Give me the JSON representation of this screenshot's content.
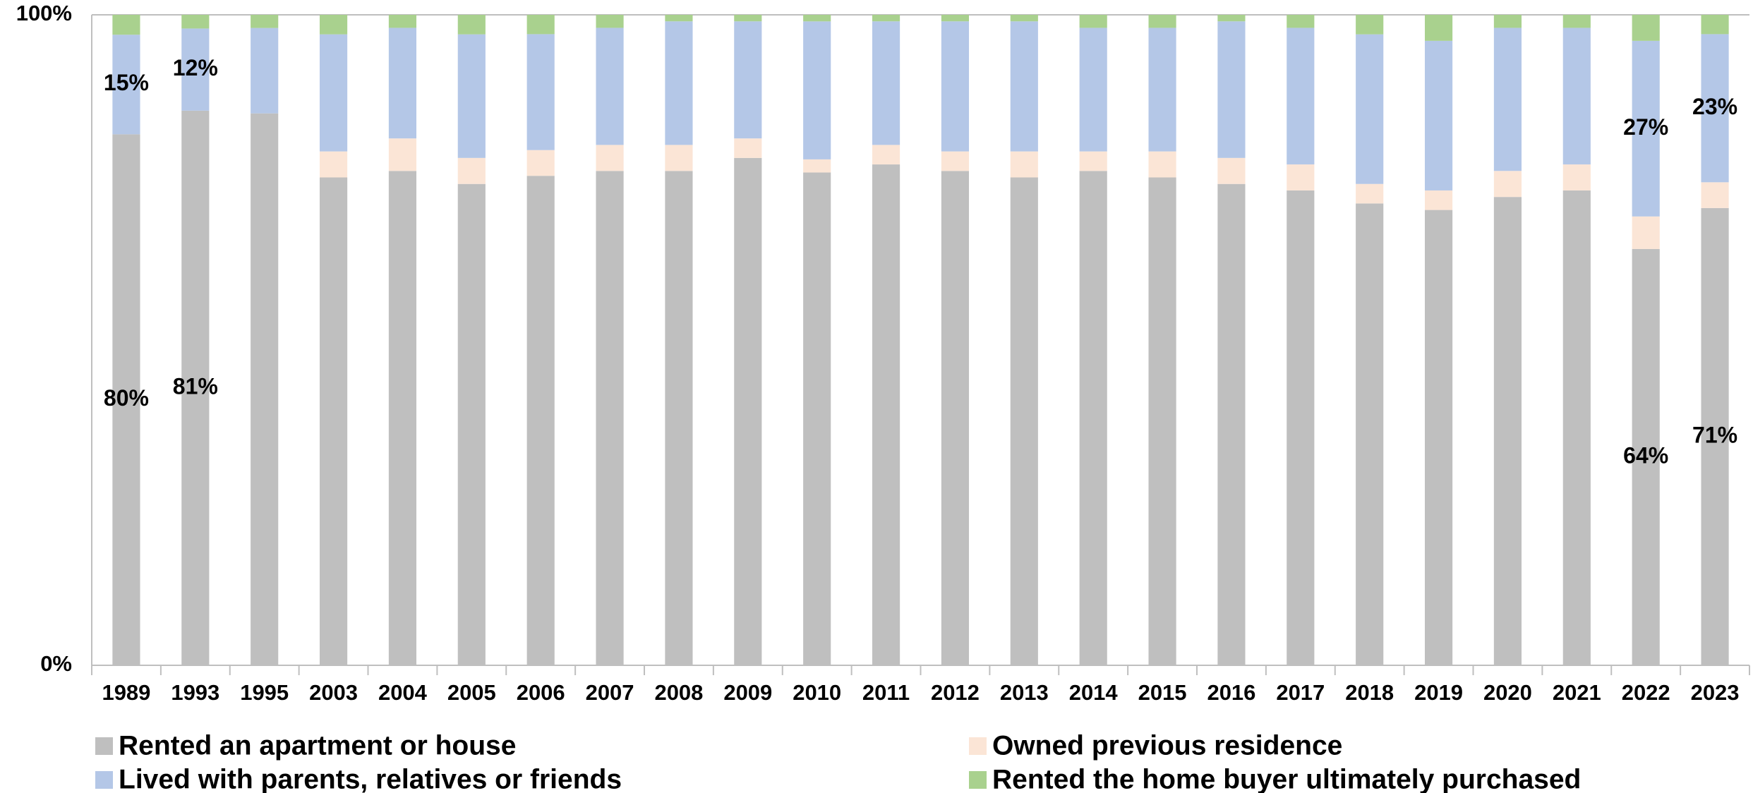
{
  "chart_data": {
    "type": "bar",
    "stacked": "percent",
    "categories": [
      "1989",
      "1993",
      "1995",
      "2003",
      "2004",
      "2005",
      "2006",
      "2007",
      "2008",
      "2009",
      "2010",
      "2011",
      "2012",
      "2013",
      "2014",
      "2015",
      "2016",
      "2017",
      "2018",
      "2019",
      "2020",
      "2021",
      "2022",
      "2023"
    ],
    "series": [
      {
        "name": "Rented an apartment or house",
        "color": "#bfbfbf",
        "values": [
          80,
          81,
          84,
          75,
          76,
          74,
          76,
          76,
          76,
          78,
          75,
          77,
          76,
          75,
          76,
          75,
          74,
          73,
          71,
          70,
          72,
          73,
          64,
          71
        ],
        "value_labels": [
          "80%",
          "81%",
          null,
          null,
          null,
          null,
          null,
          null,
          null,
          null,
          null,
          null,
          null,
          null,
          null,
          null,
          null,
          null,
          null,
          null,
          null,
          null,
          "64%",
          "71%"
        ]
      },
      {
        "name": "Owned previous residence",
        "color": "#fbe5d6",
        "values": [
          0,
          0,
          0,
          4,
          5,
          4,
          4,
          4,
          4,
          3,
          2,
          3,
          3,
          4,
          3,
          4,
          4,
          4,
          3,
          3,
          4,
          4,
          5,
          4
        ]
      },
      {
        "name": "Lived with parents, relatives or friends",
        "color": "#b4c7e7",
        "values": [
          15,
          12,
          13,
          18,
          17,
          19,
          18,
          18,
          19,
          18,
          21,
          19,
          20,
          20,
          19,
          19,
          21,
          21,
          23,
          23,
          22,
          21,
          27,
          23
        ],
        "value_labels": [
          "15%",
          "12%",
          null,
          null,
          null,
          null,
          null,
          null,
          null,
          null,
          null,
          null,
          null,
          null,
          null,
          null,
          null,
          null,
          null,
          null,
          null,
          null,
          "27%",
          "23%"
        ]
      },
      {
        "name": "Rented the home buyer ultimately purchased",
        "color": "#a9d18e",
        "values": [
          3,
          2,
          2,
          3,
          2,
          3,
          3,
          2,
          1,
          1,
          1,
          1,
          1,
          1,
          2,
          2,
          1,
          2,
          3,
          4,
          2,
          2,
          4,
          3
        ]
      }
    ],
    "ylim": [
      0,
      100
    ],
    "yticks": [
      {
        "value": 0,
        "label": "0%"
      },
      {
        "value": 100,
        "label": "100%"
      }
    ]
  }
}
